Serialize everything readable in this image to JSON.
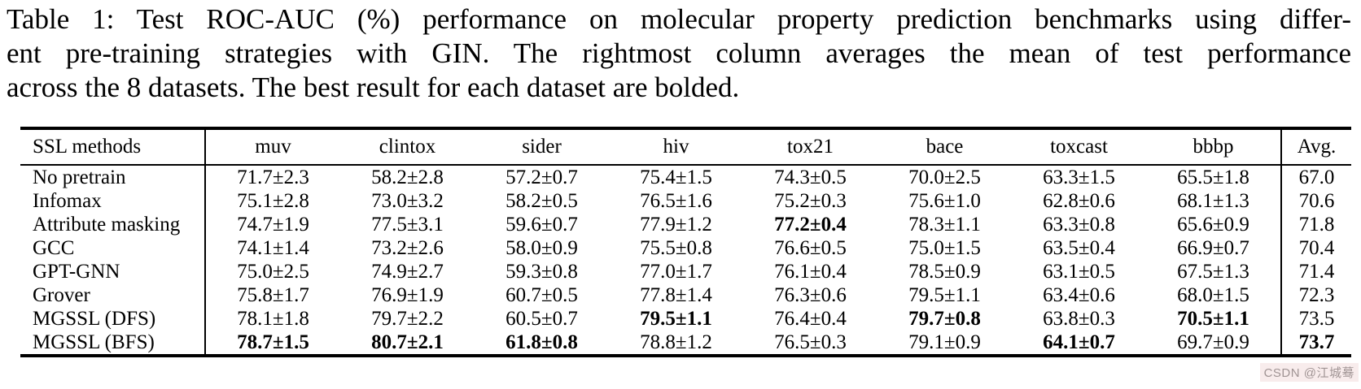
{
  "caption": {
    "lines": [
      "Table 1: Test ROC-AUC (%) performance on molecular property prediction benchmarks using differ-",
      "ent pre-training strategies with GIN. The rightmost column averages the mean of test performance",
      "across the 8 datasets. The best result for each dataset are bolded."
    ]
  },
  "table": {
    "method_header": "SSL methods",
    "dataset_headers": [
      "muv",
      "clintox",
      "sider",
      "hiv",
      "tox21",
      "bace",
      "toxcast",
      "bbbp"
    ],
    "avg_header": "Avg.",
    "rows": [
      {
        "method": "No pretrain",
        "cells": [
          {
            "value": "71.7±2.3",
            "bold": false
          },
          {
            "value": "58.2±2.8",
            "bold": false
          },
          {
            "value": "57.2±0.7",
            "bold": false
          },
          {
            "value": "75.4±1.5",
            "bold": false
          },
          {
            "value": "74.3±0.5",
            "bold": false
          },
          {
            "value": "70.0±2.5",
            "bold": false
          },
          {
            "value": "63.3±1.5",
            "bold": false
          },
          {
            "value": "65.5±1.8",
            "bold": false
          }
        ],
        "avg": "67.0",
        "avg_bold": false
      },
      {
        "method": "Infomax",
        "cells": [
          {
            "value": "75.1±2.8",
            "bold": false
          },
          {
            "value": "73.0±3.2",
            "bold": false
          },
          {
            "value": "58.2±0.5",
            "bold": false
          },
          {
            "value": "76.5±1.6",
            "bold": false
          },
          {
            "value": "75.2±0.3",
            "bold": false
          },
          {
            "value": "75.6±1.0",
            "bold": false
          },
          {
            "value": "62.8±0.6",
            "bold": false
          },
          {
            "value": "68.1±1.3",
            "bold": false
          }
        ],
        "avg": "70.6",
        "avg_bold": false
      },
      {
        "method": "Attribute masking",
        "cells": [
          {
            "value": "74.7±1.9",
            "bold": false
          },
          {
            "value": "77.5±3.1",
            "bold": false
          },
          {
            "value": "59.6±0.7",
            "bold": false
          },
          {
            "value": "77.9±1.2",
            "bold": false
          },
          {
            "value": "77.2±0.4",
            "bold": true
          },
          {
            "value": "78.3±1.1",
            "bold": false
          },
          {
            "value": "63.3±0.8",
            "bold": false
          },
          {
            "value": "65.6±0.9",
            "bold": false
          }
        ],
        "avg": "71.8",
        "avg_bold": false
      },
      {
        "method": "GCC",
        "cells": [
          {
            "value": "74.1±1.4",
            "bold": false
          },
          {
            "value": "73.2±2.6",
            "bold": false
          },
          {
            "value": "58.0±0.9",
            "bold": false
          },
          {
            "value": "75.5±0.8",
            "bold": false
          },
          {
            "value": "76.6±0.5",
            "bold": false
          },
          {
            "value": "75.0±1.5",
            "bold": false
          },
          {
            "value": "63.5±0.4",
            "bold": false
          },
          {
            "value": "66.9±0.7",
            "bold": false
          }
        ],
        "avg": "70.4",
        "avg_bold": false
      },
      {
        "method": "GPT-GNN",
        "cells": [
          {
            "value": "75.0±2.5",
            "bold": false
          },
          {
            "value": "74.9±2.7",
            "bold": false
          },
          {
            "value": "59.3±0.8",
            "bold": false
          },
          {
            "value": "77.0±1.7",
            "bold": false
          },
          {
            "value": "76.1±0.4",
            "bold": false
          },
          {
            "value": "78.5±0.9",
            "bold": false
          },
          {
            "value": "63.1±0.5",
            "bold": false
          },
          {
            "value": "67.5±1.3",
            "bold": false
          }
        ],
        "avg": "71.4",
        "avg_bold": false
      },
      {
        "method": "Grover",
        "cells": [
          {
            "value": "75.8±1.7",
            "bold": false
          },
          {
            "value": "76.9±1.9",
            "bold": false
          },
          {
            "value": "60.7±0.5",
            "bold": false
          },
          {
            "value": "77.8±1.4",
            "bold": false
          },
          {
            "value": "76.3±0.6",
            "bold": false
          },
          {
            "value": "79.5±1.1",
            "bold": false
          },
          {
            "value": "63.4±0.6",
            "bold": false
          },
          {
            "value": "68.0±1.5",
            "bold": false
          }
        ],
        "avg": "72.3",
        "avg_bold": false
      },
      {
        "method": "MGSSL (DFS)",
        "cells": [
          {
            "value": "78.1±1.8",
            "bold": false
          },
          {
            "value": "79.7±2.2",
            "bold": false
          },
          {
            "value": "60.5±0.7",
            "bold": false
          },
          {
            "value": "79.5±1.1",
            "bold": true
          },
          {
            "value": "76.4±0.4",
            "bold": false
          },
          {
            "value": "79.7±0.8",
            "bold": true
          },
          {
            "value": "63.8±0.3",
            "bold": false
          },
          {
            "value": "70.5±1.1",
            "bold": true
          }
        ],
        "avg": "73.5",
        "avg_bold": false
      },
      {
        "method": "MGSSL (BFS)",
        "cells": [
          {
            "value": "78.7±1.5",
            "bold": true
          },
          {
            "value": "80.7±2.1",
            "bold": true
          },
          {
            "value": "61.8±0.8",
            "bold": true
          },
          {
            "value": "78.8±1.2",
            "bold": false
          },
          {
            "value": "76.5±0.3",
            "bold": false
          },
          {
            "value": "79.1±0.9",
            "bold": false
          },
          {
            "value": "64.1±0.7",
            "bold": true
          },
          {
            "value": "69.7±0.9",
            "bold": false
          }
        ],
        "avg": "73.7",
        "avg_bold": true
      }
    ]
  },
  "watermark": {
    "text": "CSDN @江城蓦",
    "color": "#a09494"
  },
  "colors": {
    "background": "#ffffff",
    "text": "#000000",
    "rule": "#000000"
  }
}
